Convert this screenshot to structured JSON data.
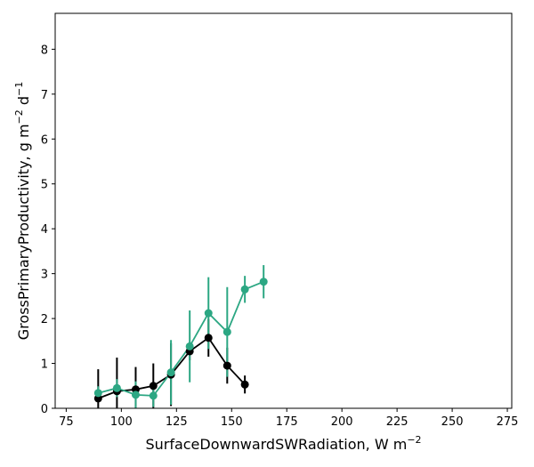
{
  "chart_data": {
    "type": "line",
    "title": "",
    "xlabel": "SurfaceDownwardSWRadiation,  W m",
    "xlabel_sup": "−2",
    "ylabel_prefix": "GrossPrimaryProductivity,  g m",
    "ylabel_sup1": "−2",
    "ylabel_mid": " d",
    "ylabel_sup2": "−1",
    "xlim": [
      70,
      277
    ],
    "ylim": [
      0,
      8.8
    ],
    "xticks": [
      75,
      100,
      125,
      150,
      175,
      200,
      225,
      250,
      275
    ],
    "yticks": [
      0,
      1,
      2,
      3,
      4,
      5,
      6,
      7,
      8
    ],
    "grid": false,
    "series": [
      {
        "name": "black",
        "color": "#000000",
        "x": [
          89.5,
          98,
          106.5,
          114.5,
          122.5,
          131,
          139.5,
          148,
          156
        ],
        "y": [
          0.22,
          0.38,
          0.42,
          0.5,
          0.75,
          1.27,
          1.57,
          0.95,
          0.53
        ],
        "err": [
          0.65,
          0.75,
          0.5,
          0.5,
          0.7,
          0.2,
          0.42,
          0.4,
          0.2
        ]
      },
      {
        "name": "teal",
        "color": "#2ca783",
        "x": [
          89.5,
          98,
          106.5,
          114.5,
          122.5,
          131,
          139.5,
          148,
          156,
          164.5
        ],
        "y": [
          0.34,
          0.45,
          0.3,
          0.28,
          0.8,
          1.38,
          2.12,
          1.7,
          2.65,
          2.82
        ],
        "err": [
          0.15,
          0.2,
          0.3,
          0.25,
          0.72,
          0.8,
          0.8,
          1.0,
          0.3,
          0.37
        ]
      }
    ]
  }
}
